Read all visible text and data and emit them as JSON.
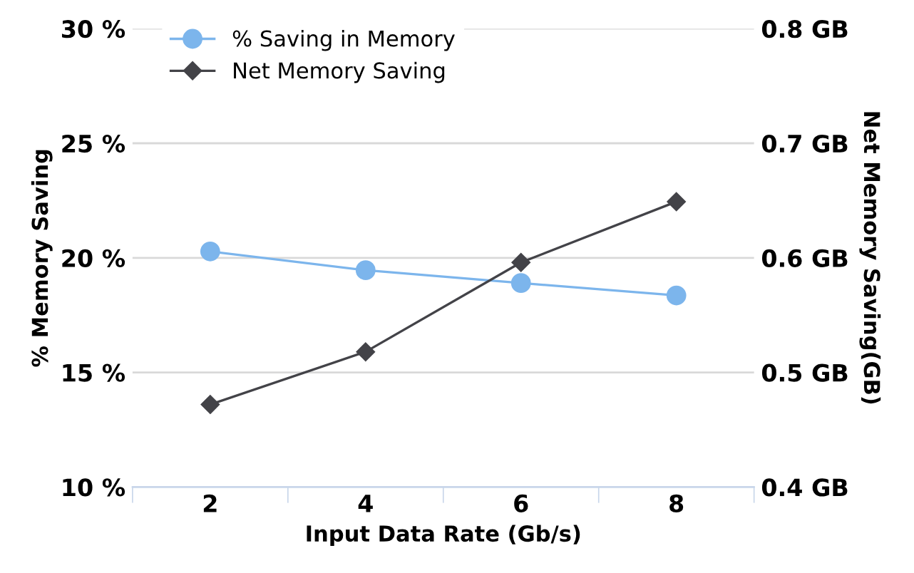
{
  "chart_data": {
    "type": "line",
    "categories": [
      "2",
      "4",
      "6",
      "8"
    ],
    "xlabel": "Input Data Rate (Gb/s)",
    "ylabel": "% Memory Saving",
    "y2label": "Net Memory Saving(GB)",
    "ylim": [
      10,
      30
    ],
    "yticks": [
      {
        "value": 10,
        "label": "10 %"
      },
      {
        "value": 15,
        "label": "15 %"
      },
      {
        "value": 20,
        "label": "20 %"
      },
      {
        "value": 25,
        "label": "25 %"
      },
      {
        "value": 30,
        "label": "30 %"
      }
    ],
    "y2lim": [
      0.4,
      0.8
    ],
    "y2ticks": [
      {
        "value": 0.4,
        "label": "0.4 GB"
      },
      {
        "value": 0.5,
        "label": "0.5 GB"
      },
      {
        "value": 0.6,
        "label": "0.6 GB"
      },
      {
        "value": 0.7,
        "label": "0.7 GB"
      },
      {
        "value": 0.8,
        "label": "0.8 GB"
      }
    ],
    "grid": "y",
    "legend": "top left",
    "series": [
      {
        "name": "% Saving in Memory",
        "color": "#7cb5ec",
        "marker": "circle",
        "values": [
          20.28,
          19.46,
          18.9,
          18.36
        ]
      },
      {
        "name": "Net Memory Saving",
        "color": "#434348",
        "marker": "diamond",
        "axis": "y2",
        "values": [
          0.472,
          0.518,
          0.596,
          0.649
        ]
      }
    ]
  }
}
